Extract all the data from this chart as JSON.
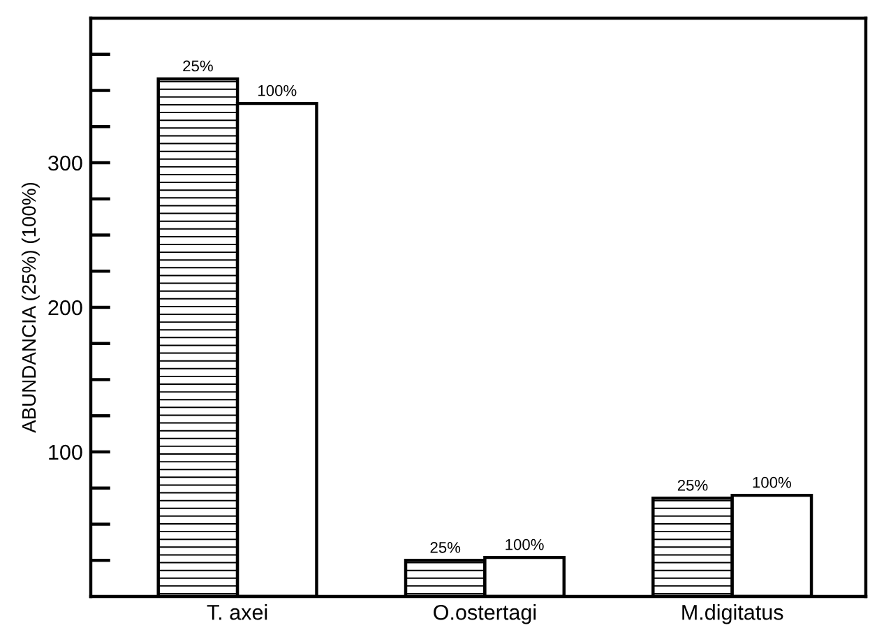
{
  "chart_data": {
    "type": "bar",
    "ylabel": "ABUNDANCIA (25%) (100%)",
    "categories": [
      "T. axei",
      "O.ostertagi",
      "M.digitatus"
    ],
    "series": [
      {
        "name": "25%",
        "color": "#000000",
        "values": [
          358,
          25,
          68
        ]
      },
      {
        "name": "100%",
        "color": "#ffffff",
        "values": [
          341,
          27,
          70
        ]
      }
    ],
    "ylim": [
      0,
      400
    ],
    "yticks": [
      {
        "value": 25,
        "label": null
      },
      {
        "value": 50,
        "label": null
      },
      {
        "value": 75,
        "label": null
      },
      100,
      {
        "value": 125,
        "label": null
      },
      {
        "value": 150,
        "label": null
      },
      {
        "value": 175,
        "label": null
      },
      200,
      {
        "value": 225,
        "label": null
      },
      {
        "value": 250,
        "label": null
      },
      {
        "value": 275,
        "label": null
      },
      300,
      {
        "value": 325,
        "label": null
      },
      {
        "value": 350,
        "label": null
      },
      {
        "value": 375,
        "label": null
      }
    ],
    "grid": false,
    "legend": false
  }
}
